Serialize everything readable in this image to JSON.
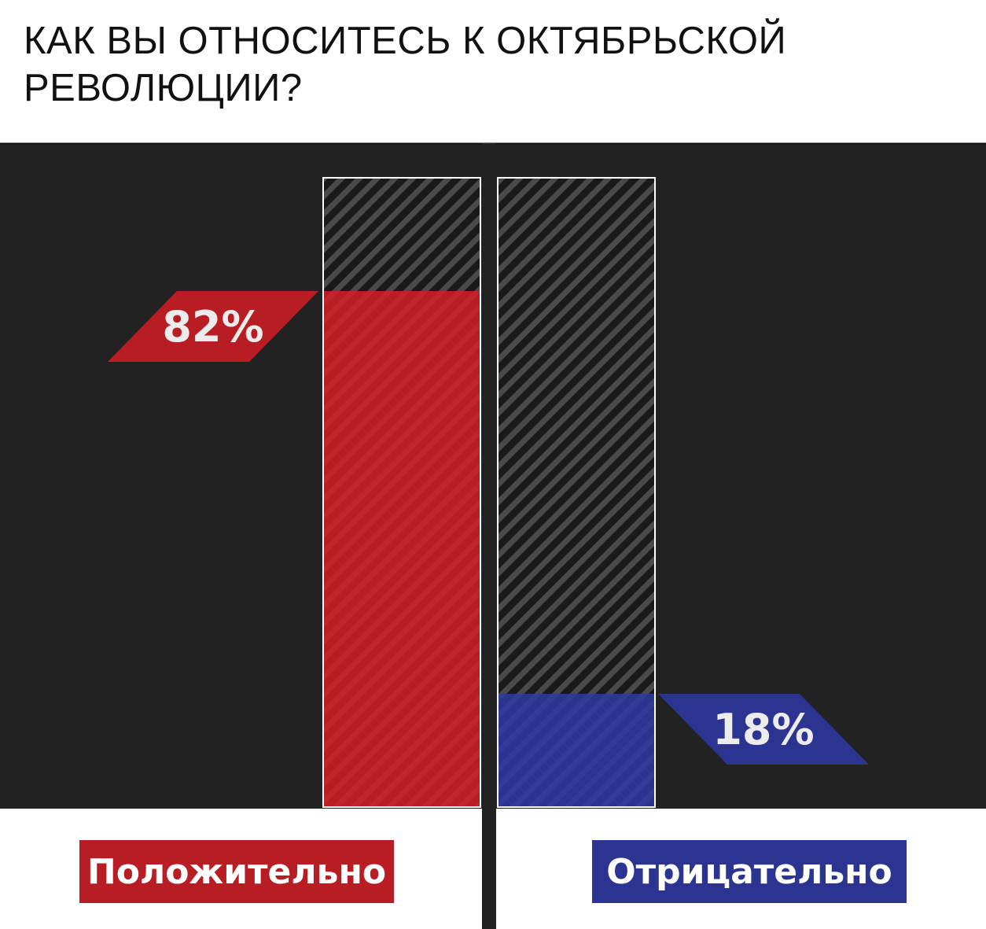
{
  "title": "КАК ВЫ ОТНОСИТЕСЬ К ОКТЯБРЬСКОЙ РЕВОЛЮЦИИ?",
  "colors": {
    "background_panel": "#222222",
    "positive": "#b91d24",
    "negative": "#2b3491",
    "label_text": "#ececec",
    "bar_border": "#ffffff"
  },
  "chart_data": {
    "type": "bar",
    "title": "КАК ВЫ ОТНОСИТЕСЬ К ОКТЯБРЬСКОЙ РЕВОЛЮЦИИ?",
    "categories": [
      "Положительно",
      "Отрицательно"
    ],
    "values": [
      82,
      18
    ],
    "value_labels": [
      "82%",
      "18%"
    ],
    "unit": "%",
    "ylim": [
      0,
      100
    ],
    "grid": false,
    "legend_position": "bottom"
  },
  "legend": {
    "positive_label": "Положительно",
    "negative_label": "Отрицательно"
  }
}
